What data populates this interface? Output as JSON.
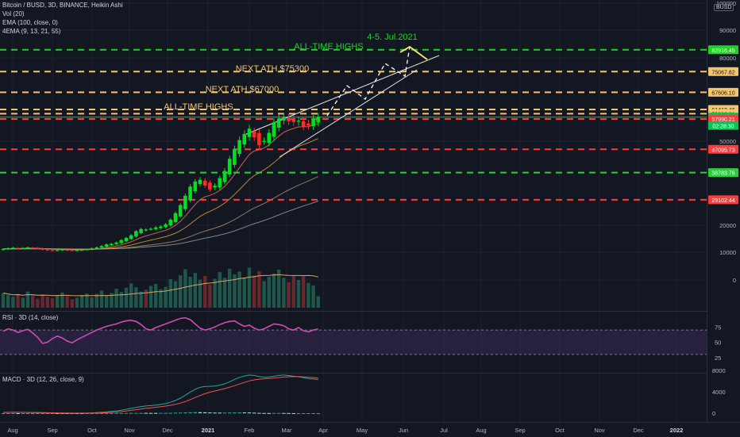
{
  "legend": {
    "symbol": "Bitcoin / BUSD, 3D, BINANCE, Heikin Ashi",
    "vol": "Vol (20)",
    "ema": "EMA (100, close, 0)",
    "ema4": "4EMA (9, 13, 21, 55)",
    "rsi": "RSI · 3D (14, close)",
    "macd": "MACD · 3D (12, 26, close, 9)"
  },
  "currency": "BUSD",
  "colors": {
    "bg": "#131722",
    "up": "#00e11d",
    "down": "#ff2a2a",
    "ath_line": "#21d126",
    "next_ath_line": "#f5c56b",
    "support_red": "#ff3b3b",
    "support_green": "#2ecc40",
    "current_badge": "#00c853",
    "rsi_line": "#d04ab8",
    "rsi_band": "#3b2a55",
    "macd_line": "#26a69a",
    "signal_line": "#ef5350"
  },
  "chart_data": [
    {
      "type": "candlestick",
      "pane": "price",
      "x_ticks": [
        "Aug",
        "Sep",
        "Oct",
        "Nov",
        "Dec",
        "2021",
        "Feb",
        "Mar",
        "Apr",
        "May",
        "Jun",
        "Jul",
        "Aug",
        "Sep",
        "Oct",
        "Nov",
        "Dec",
        "2022"
      ],
      "y_ticks": [
        "100000",
        "90000",
        "80000",
        "50000",
        "20000",
        "10000",
        "0"
      ],
      "series": [
        {
          "name": "Heikin Ashi close (approx.)",
          "values": [
            11200,
            11500,
            11700,
            11400,
            11600,
            11800,
            11500,
            11300,
            10900,
            10700,
            10600,
            10800,
            11000,
            10700,
            10600,
            10800,
            10900,
            11100,
            11500,
            11800,
            12300,
            12900,
            13100,
            13600,
            14500,
            15300,
            16300,
            17800,
            18600,
            18400,
            18700,
            19200,
            19500,
            20300,
            22000,
            24300,
            27200,
            30500,
            33800,
            35600,
            36200,
            34200,
            32800,
            34100,
            36800,
            39400,
            43700,
            47200,
            50400,
            52600,
            54500,
            51400,
            48600,
            50100,
            53000,
            56800,
            58100,
            58700,
            57200,
            56900,
            57400,
            55300,
            55600,
            57900,
            58668
          ]
        }
      ],
      "price_levels": [
        {
          "value": 82916.45,
          "label": "82916.45",
          "color": "#21d126"
        },
        {
          "value": 75067.82,
          "label": "75067.82",
          "color": "#f5c56b"
        },
        {
          "value": 67606.1,
          "label": "67606.10",
          "color": "#f5c56b"
        },
        {
          "value": 61413.46,
          "label": "61413.46",
          "color": "#f5c56b"
        },
        {
          "value": 59900.31,
          "label": "59900.31",
          "color": "#f5c56b"
        },
        {
          "value": 58668.0,
          "label": "58668.00",
          "color": "#00c853"
        },
        {
          "value": 57990.21,
          "label": "57990.21",
          "color": "#ff3b3b"
        },
        {
          "value": 47095.73,
          "label": "47095.73",
          "color": "#ff3b3b"
        },
        {
          "value": 38783.76,
          "label": "38783.76",
          "color": "#2ecc40"
        },
        {
          "value": 29102.44,
          "label": "29102.44",
          "color": "#ff3b3b"
        }
      ],
      "countdown": "02:28:30",
      "annotations": [
        "ALL-TIME HIGHS",
        "4-5. Jul.2021",
        "NEXT ATH $75300",
        "NEXT ATH $67000",
        "ALL-TIME HIGHS"
      ]
    },
    {
      "type": "bar",
      "pane": "volume",
      "series": [
        {
          "name": "Vol (20)",
          "values": [
            3.1,
            2.7,
            2.3,
            2.9,
            2.1,
            3.4,
            2.6,
            1.9,
            2.8,
            2.3,
            2.0,
            2.6,
            3.2,
            2.4,
            1.8,
            2.1,
            2.7,
            3.0,
            2.2,
            2.9,
            3.6,
            2.5,
            3.1,
            4.0,
            3.3,
            4.2,
            5.1,
            4.3,
            3.4,
            3.8,
            4.6,
            5.0,
            3.9,
            4.4,
            6.0,
            5.6,
            6.8,
            8.1,
            6.5,
            7.3,
            5.9,
            6.7,
            4.9,
            6.1,
            7.5,
            6.3,
            8.2,
            7.0,
            7.6,
            6.4,
            8.4,
            6.8,
            7.7,
            5.6,
            6.5,
            7.2,
            8.0,
            6.3,
            5.4,
            6.8,
            5.8,
            6.6,
            5.2,
            4.7,
            2.4
          ]
        }
      ]
    },
    {
      "type": "line",
      "pane": "rsi",
      "y_ticks": [
        "75",
        "50",
        "25"
      ],
      "series": [
        {
          "name": "RSI",
          "values": [
            68,
            72,
            70,
            66,
            69,
            71,
            65,
            58,
            48,
            50,
            56,
            60,
            57,
            52,
            49,
            54,
            58,
            62,
            66,
            70,
            73,
            76,
            78,
            80,
            83,
            85,
            86,
            84,
            79,
            72,
            70,
            74,
            77,
            80,
            83,
            86,
            89,
            90,
            87,
            80,
            73,
            70,
            72,
            75,
            79,
            82,
            84,
            85,
            80,
            76,
            78,
            73,
            70,
            72,
            76,
            80,
            79,
            77,
            72,
            70,
            74,
            69,
            67,
            70,
            72
          ]
        }
      ]
    },
    {
      "type": "line",
      "pane": "macd",
      "y_ticks": [
        "8000",
        "4000",
        "0"
      ],
      "series": [
        {
          "name": "MACD",
          "values": [
            150,
            160,
            170,
            160,
            150,
            140,
            120,
            90,
            60,
            30,
            10,
            -5,
            -10,
            -20,
            -25,
            -15,
            0,
            20,
            60,
            110,
            170,
            240,
            320,
            430,
            560,
            720,
            900,
            1080,
            1240,
            1350,
            1420,
            1520,
            1640,
            1800,
            2050,
            2380,
            2820,
            3360,
            3950,
            4480,
            4850,
            5000,
            5020,
            5080,
            5250,
            5500,
            5880,
            6300,
            6700,
            6950,
            7120,
            7050,
            6850,
            6720,
            6760,
            6900,
            7050,
            7120,
            7030,
            6900,
            6800,
            6630,
            6450,
            6380,
            6300
          ]
        },
        {
          "name": "Signal",
          "values": [
            140,
            150,
            160,
            160,
            158,
            154,
            146,
            133,
            116,
            96,
            76,
            58,
            44,
            31,
            20,
            13,
            11,
            12,
            19,
            34,
            59,
            96,
            145,
            212,
            297,
            403,
            527,
            657,
            784,
            902,
            1006,
            1109,
            1215,
            1332,
            1475,
            1656,
            1889,
            2183,
            2536,
            2925,
            3310,
            3648,
            3923,
            4154,
            4373,
            4598,
            4854,
            5143,
            5455,
            5754,
            6027,
            6231,
            6355,
            6428,
            6494,
            6575,
            6670,
            6760,
            6814,
            6831,
            6825,
            6786,
            6719,
            6651,
            6581
          ]
        }
      ]
    }
  ]
}
